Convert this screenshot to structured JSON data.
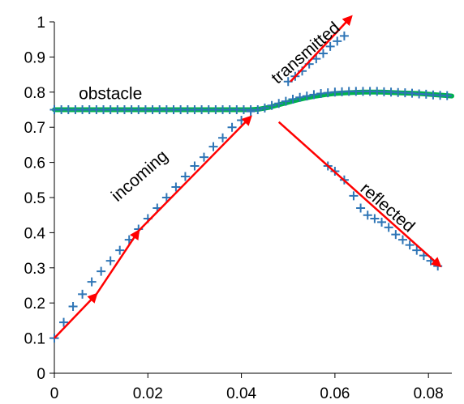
{
  "chart_data": {
    "type": "scatter",
    "xlim": [
      0,
      0.085
    ],
    "ylim": [
      0,
      1
    ],
    "x_ticks": [
      0,
      0.02,
      0.04,
      0.06,
      0.08
    ],
    "x_tick_labels": [
      "0",
      "0.02",
      "0.04",
      "0.06",
      "0.08"
    ],
    "y_ticks": [
      0,
      0.1,
      0.2,
      0.3,
      0.4,
      0.5,
      0.6,
      0.7,
      0.8,
      0.9,
      1
    ],
    "y_tick_labels": [
      "0",
      "0.1",
      "0.2",
      "0.3",
      "0.4",
      "0.5",
      "0.6",
      "0.7",
      "0.8",
      "0.9",
      "1"
    ],
    "grid": false,
    "legend": "none",
    "colors": {
      "markers": "#2e75b6",
      "obstacle": "#00b050",
      "arrows": "#ff0000"
    },
    "annotations": [
      {
        "text": "obstacle",
        "x": 0.012,
        "y": 0.78,
        "angle": 0
      },
      {
        "text": "incoming",
        "x": 0.019,
        "y": 0.55,
        "angle": -41
      },
      {
        "text": "transmitted",
        "x": 0.0545,
        "y": 0.9,
        "angle": -41
      },
      {
        "text": "reflected",
        "x": 0.0705,
        "y": 0.46,
        "angle": 41
      }
    ],
    "series": [
      {
        "style": "markers",
        "x": [
          0.0,
          0.002,
          0.004,
          0.006,
          0.008,
          0.01,
          0.012,
          0.014,
          0.016,
          0.018,
          0.02,
          0.022,
          0.024,
          0.026,
          0.028,
          0.03,
          0.032,
          0.034,
          0.036,
          0.038,
          0.04,
          0.042
        ],
        "y": [
          0.1,
          0.145,
          0.19,
          0.225,
          0.26,
          0.29,
          0.32,
          0.35,
          0.38,
          0.41,
          0.44,
          0.47,
          0.5,
          0.53,
          0.56,
          0.59,
          0.615,
          0.645,
          0.67,
          0.7,
          0.72,
          0.745
        ]
      },
      {
        "style": "markers",
        "x": [
          0.0,
          0.0015,
          0.003,
          0.0045,
          0.006,
          0.0075,
          0.009,
          0.0105,
          0.012,
          0.0135,
          0.015,
          0.0165,
          0.018,
          0.0195,
          0.021,
          0.0225,
          0.024,
          0.0255,
          0.027,
          0.0285,
          0.03,
          0.0315,
          0.033,
          0.0345,
          0.036,
          0.0375,
          0.039,
          0.0405,
          0.042,
          0.0435,
          0.045,
          0.0465,
          0.048,
          0.0495,
          0.051,
          0.0525,
          0.054,
          0.0555,
          0.057,
          0.0585,
          0.06,
          0.0615,
          0.063,
          0.0645,
          0.066,
          0.0675,
          0.069,
          0.0705,
          0.072,
          0.0735,
          0.075,
          0.0765,
          0.078,
          0.0795,
          0.081,
          0.0825,
          0.084
        ],
        "y": [
          0.75,
          0.75,
          0.75,
          0.75,
          0.75,
          0.75,
          0.75,
          0.75,
          0.75,
          0.75,
          0.75,
          0.75,
          0.75,
          0.75,
          0.75,
          0.75,
          0.75,
          0.75,
          0.75,
          0.75,
          0.75,
          0.75,
          0.75,
          0.75,
          0.75,
          0.75,
          0.75,
          0.75,
          0.75,
          0.75,
          0.755,
          0.762,
          0.768,
          0.774,
          0.78,
          0.785,
          0.789,
          0.793,
          0.796,
          0.798,
          0.8,
          0.801,
          0.802,
          0.802,
          0.802,
          0.802,
          0.802,
          0.801,
          0.8,
          0.799,
          0.798,
          0.797,
          0.795,
          0.794,
          0.792,
          0.791,
          0.79
        ]
      },
      {
        "style": "markers",
        "x": [
          0.05,
          0.0515,
          0.053,
          0.0545,
          0.056,
          0.0575,
          0.059,
          0.0605,
          0.062
        ],
        "y": [
          0.83,
          0.845,
          0.86,
          0.88,
          0.895,
          0.91,
          0.93,
          0.945,
          0.96
        ]
      },
      {
        "style": "markers",
        "x": [
          0.0585,
          0.06,
          0.062,
          0.064,
          0.0655,
          0.067,
          0.0685,
          0.07,
          0.0715,
          0.073,
          0.0745,
          0.076,
          0.0775,
          0.079,
          0.0805,
          0.082
        ],
        "y": [
          0.59,
          0.575,
          0.55,
          0.505,
          0.47,
          0.45,
          0.44,
          0.43,
          0.415,
          0.395,
          0.38,
          0.365,
          0.35,
          0.335,
          0.32,
          0.305
        ]
      },
      {
        "style": "line",
        "color": "#00b050",
        "x": [
          0.0,
          0.042,
          0.044,
          0.046,
          0.048,
          0.05,
          0.052,
          0.054,
          0.056,
          0.058,
          0.06,
          0.062,
          0.064,
          0.066,
          0.068,
          0.07,
          0.072,
          0.074,
          0.076,
          0.078,
          0.08,
          0.082,
          0.084,
          0.085
        ],
        "y": [
          0.75,
          0.75,
          0.752,
          0.757,
          0.764,
          0.771,
          0.778,
          0.784,
          0.789,
          0.793,
          0.796,
          0.798,
          0.799,
          0.8,
          0.8,
          0.8,
          0.799,
          0.798,
          0.797,
          0.796,
          0.794,
          0.792,
          0.79,
          0.789
        ]
      }
    ],
    "arrows": [
      {
        "from": [
          0.0,
          0.1
        ],
        "to": [
          0.009,
          0.225
        ],
        "head": true
      },
      {
        "from": [
          0.009,
          0.225
        ],
        "to": [
          0.018,
          0.405
        ],
        "head": true
      },
      {
        "from": [
          0.018,
          0.405
        ],
        "to": [
          0.042,
          0.73
        ],
        "head": true
      },
      {
        "from": [
          0.0505,
          0.83
        ],
        "to": [
          0.0635,
          1.015
        ],
        "head": true
      },
      {
        "from": [
          0.048,
          0.715
        ],
        "to": [
          0.0825,
          0.305
        ],
        "head": true
      }
    ]
  }
}
